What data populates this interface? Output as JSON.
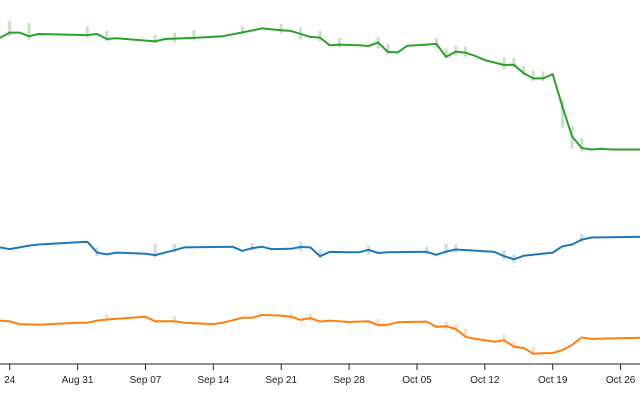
{
  "chart_data": {
    "type": "line",
    "title": "",
    "xlabel": "",
    "ylabel": "",
    "x_axis": {
      "type": "date",
      "domain": [
        "2020-08-23",
        "2020-10-28"
      ],
      "ticks": [
        {
          "date": "2020-08-24",
          "label": "24"
        },
        {
          "date": "2020-08-31",
          "label": "Aug 31"
        },
        {
          "date": "2020-09-07",
          "label": "Sep 07"
        },
        {
          "date": "2020-09-14",
          "label": "Sep 14"
        },
        {
          "date": "2020-09-21",
          "label": "Sep 21"
        },
        {
          "date": "2020-09-28",
          "label": "Sep 28"
        },
        {
          "date": "2020-10-05",
          "label": "Oct 05"
        },
        {
          "date": "2020-10-12",
          "label": "Oct 12"
        },
        {
          "date": "2020-10-19",
          "label": "Oct 19"
        },
        {
          "date": "2020-10-26",
          "label": "Oct 26"
        }
      ]
    },
    "y_axis": {
      "visible": false,
      "ylim": [
        0,
        100
      ]
    },
    "grid": false,
    "legend": "none",
    "series": [
      {
        "color": "#2ca02c",
        "band_color": "#c8e3c3",
        "points": [
          [
            "2020-08-23",
            91.5
          ],
          [
            "2020-08-24",
            93.0
          ],
          [
            "2020-08-25",
            93.0
          ],
          [
            "2020-08-26",
            92.0
          ],
          [
            "2020-08-27",
            92.6
          ],
          [
            "2020-09-01",
            92.3
          ],
          [
            "2020-09-02",
            92.6
          ],
          [
            "2020-09-03",
            91.2
          ],
          [
            "2020-09-04",
            91.4
          ],
          [
            "2020-09-05",
            91.2
          ],
          [
            "2020-09-08",
            90.5
          ],
          [
            "2020-09-09",
            91.2
          ],
          [
            "2020-09-12",
            91.5
          ],
          [
            "2020-09-15",
            92.0
          ],
          [
            "2020-09-18",
            93.6
          ],
          [
            "2020-09-19",
            94.2
          ],
          [
            "2020-09-21",
            93.7
          ],
          [
            "2020-09-22",
            93.5
          ],
          [
            "2020-09-24",
            91.8
          ],
          [
            "2020-09-25",
            91.6
          ],
          [
            "2020-09-26",
            89.4
          ],
          [
            "2020-09-27",
            89.6
          ],
          [
            "2020-09-29",
            89.4
          ],
          [
            "2020-09-30",
            89.2
          ],
          [
            "2020-10-01",
            90.2
          ],
          [
            "2020-10-02",
            87.5
          ],
          [
            "2020-10-03",
            87.4
          ],
          [
            "2020-10-04",
            89.3
          ],
          [
            "2020-10-06",
            89.6
          ],
          [
            "2020-10-07",
            89.8
          ],
          [
            "2020-10-08",
            86.1
          ],
          [
            "2020-10-09",
            87.6
          ],
          [
            "2020-10-10",
            87.3
          ],
          [
            "2020-10-11",
            86.4
          ],
          [
            "2020-10-12",
            85.2
          ],
          [
            "2020-10-14",
            83.8
          ],
          [
            "2020-10-15",
            83.9
          ],
          [
            "2020-10-16",
            81.5
          ],
          [
            "2020-10-17",
            80.0
          ],
          [
            "2020-10-18",
            80.0
          ],
          [
            "2020-10-19",
            81.2
          ],
          [
            "2020-10-20",
            72.0
          ],
          [
            "2020-10-21",
            63.5
          ],
          [
            "2020-10-22",
            60.2
          ],
          [
            "2020-10-23",
            59.8
          ],
          [
            "2020-10-24",
            60.0
          ],
          [
            "2020-10-25",
            59.8
          ],
          [
            "2020-10-28",
            59.8
          ]
        ]
      },
      {
        "color": "#1f77b4",
        "band_color": "#c6dbee",
        "points": [
          [
            "2020-08-23",
            32.0
          ],
          [
            "2020-08-24",
            31.5
          ],
          [
            "2020-08-26",
            32.5
          ],
          [
            "2020-08-27",
            32.8
          ],
          [
            "2020-09-01",
            33.6
          ],
          [
            "2020-09-02",
            30.5
          ],
          [
            "2020-09-03",
            30.0
          ],
          [
            "2020-09-04",
            30.5
          ],
          [
            "2020-09-07",
            30.2
          ],
          [
            "2020-09-08",
            29.8
          ],
          [
            "2020-09-10",
            31.2
          ],
          [
            "2020-09-11",
            32.0
          ],
          [
            "2020-09-14",
            32.1
          ],
          [
            "2020-09-16",
            32.2
          ],
          [
            "2020-09-17",
            31.0
          ],
          [
            "2020-09-18",
            31.8
          ],
          [
            "2020-09-19",
            32.2
          ],
          [
            "2020-09-20",
            31.5
          ],
          [
            "2020-09-22",
            31.6
          ],
          [
            "2020-09-23",
            32.1
          ],
          [
            "2020-09-24",
            32.0
          ],
          [
            "2020-09-25",
            29.5
          ],
          [
            "2020-09-26",
            30.7
          ],
          [
            "2020-09-28",
            30.6
          ],
          [
            "2020-09-29",
            30.6
          ],
          [
            "2020-09-30",
            31.3
          ],
          [
            "2020-10-01",
            30.4
          ],
          [
            "2020-10-02",
            30.6
          ],
          [
            "2020-10-05",
            30.7
          ],
          [
            "2020-10-06",
            30.7
          ],
          [
            "2020-10-07",
            29.9
          ],
          [
            "2020-10-08",
            30.8
          ],
          [
            "2020-10-09",
            31.4
          ],
          [
            "2020-10-13",
            30.7
          ],
          [
            "2020-10-14",
            29.5
          ],
          [
            "2020-10-15",
            28.6
          ],
          [
            "2020-10-16",
            29.6
          ],
          [
            "2020-10-19",
            30.5
          ],
          [
            "2020-10-20",
            32.3
          ],
          [
            "2020-10-21",
            32.8
          ],
          [
            "2020-10-22",
            34.2
          ],
          [
            "2020-10-23",
            34.8
          ],
          [
            "2020-10-28",
            35.0
          ]
        ]
      },
      {
        "color": "#ff7f0e",
        "band_color": "#f7ddc2",
        "points": [
          [
            "2020-08-23",
            11.2
          ],
          [
            "2020-08-24",
            11.0
          ],
          [
            "2020-08-25",
            10.2
          ],
          [
            "2020-08-27",
            10.0
          ],
          [
            "2020-08-31",
            10.6
          ],
          [
            "2020-09-01",
            10.6
          ],
          [
            "2020-09-02",
            11.2
          ],
          [
            "2020-09-03",
            11.5
          ],
          [
            "2020-09-07",
            12.3
          ],
          [
            "2020-09-08",
            11.0
          ],
          [
            "2020-09-10",
            11.0
          ],
          [
            "2020-09-11",
            10.6
          ],
          [
            "2020-09-14",
            10.2
          ],
          [
            "2020-09-15",
            10.6
          ],
          [
            "2020-09-17",
            12.0
          ],
          [
            "2020-09-18",
            12.0
          ],
          [
            "2020-09-19",
            12.8
          ],
          [
            "2020-09-21",
            12.6
          ],
          [
            "2020-09-22",
            12.3
          ],
          [
            "2020-09-23",
            11.4
          ],
          [
            "2020-09-24",
            11.9
          ],
          [
            "2020-09-25",
            10.9
          ],
          [
            "2020-09-26",
            11.2
          ],
          [
            "2020-09-28",
            10.8
          ],
          [
            "2020-09-30",
            11.0
          ],
          [
            "2020-10-01",
            9.9
          ],
          [
            "2020-10-02",
            10.0
          ],
          [
            "2020-10-03",
            10.7
          ],
          [
            "2020-10-04",
            10.8
          ],
          [
            "2020-10-06",
            10.9
          ],
          [
            "2020-10-07",
            9.4
          ],
          [
            "2020-10-08",
            9.6
          ],
          [
            "2020-10-09",
            8.8
          ],
          [
            "2020-10-10",
            6.6
          ],
          [
            "2020-10-11",
            6.0
          ],
          [
            "2020-10-12",
            5.6
          ],
          [
            "2020-10-13",
            5.2
          ],
          [
            "2020-10-14",
            5.6
          ],
          [
            "2020-10-15",
            3.8
          ],
          [
            "2020-10-16",
            3.4
          ],
          [
            "2020-10-17",
            1.8
          ],
          [
            "2020-10-18",
            1.9
          ],
          [
            "2020-10-19",
            2.0
          ],
          [
            "2020-10-20",
            2.8
          ],
          [
            "2020-10-21",
            4.3
          ],
          [
            "2020-10-22",
            6.4
          ],
          [
            "2020-10-23",
            6.0
          ],
          [
            "2020-10-28",
            6.3
          ]
        ]
      }
    ],
    "bands": [
      {
        "color": "#c8e3c3",
        "bars": [
          [
            "2020-08-24",
            92.0,
            96.5
          ],
          [
            "2020-08-26",
            91.0,
            95.8
          ],
          [
            "2020-09-01",
            91.5,
            94.8
          ],
          [
            "2020-09-03",
            90.5,
            93.5
          ],
          [
            "2020-09-08",
            90.0,
            92.5
          ],
          [
            "2020-09-10",
            90.2,
            93.0
          ],
          [
            "2020-09-12",
            90.8,
            93.8
          ],
          [
            "2020-09-17",
            92.5,
            94.8
          ],
          [
            "2020-09-21",
            92.8,
            95.5
          ],
          [
            "2020-09-23",
            91.0,
            94.5
          ],
          [
            "2020-09-25",
            90.5,
            93.5
          ],
          [
            "2020-09-27",
            88.8,
            91.5
          ],
          [
            "2020-10-01",
            88.5,
            91.8
          ],
          [
            "2020-10-02",
            86.8,
            89.8
          ],
          [
            "2020-10-07",
            88.5,
            91.5
          ],
          [
            "2020-10-08",
            85.8,
            88.5
          ],
          [
            "2020-10-09",
            86.5,
            89.3
          ],
          [
            "2020-10-10",
            86.2,
            89.0
          ],
          [
            "2020-10-14",
            82.5,
            86.0
          ],
          [
            "2020-10-15",
            83.0,
            85.8
          ],
          [
            "2020-10-16",
            80.8,
            83.6
          ],
          [
            "2020-10-17",
            79.3,
            82.2
          ],
          [
            "2020-10-18",
            79.3,
            82.0
          ],
          [
            "2020-10-20",
            66.0,
            74.0
          ],
          [
            "2020-10-21",
            60.0,
            66.5
          ],
          [
            "2020-10-22",
            59.2,
            63.0
          ]
        ]
      },
      {
        "color": "#c6dbee",
        "bars": [
          [
            "2020-09-02",
            29.5,
            32.0
          ],
          [
            "2020-09-08",
            29.2,
            33.0
          ],
          [
            "2020-09-10",
            30.5,
            33.0
          ],
          [
            "2020-09-18",
            31.0,
            33.2
          ],
          [
            "2020-09-23",
            31.0,
            33.5
          ],
          [
            "2020-09-25",
            29.0,
            31.5
          ],
          [
            "2020-09-30",
            30.0,
            32.5
          ],
          [
            "2020-10-06",
            30.0,
            32.2
          ],
          [
            "2020-10-08",
            30.0,
            33.0
          ],
          [
            "2020-10-09",
            30.5,
            32.8
          ],
          [
            "2020-10-14",
            28.5,
            31.2
          ],
          [
            "2020-10-15",
            27.5,
            30.0
          ],
          [
            "2020-10-22",
            33.5,
            35.8
          ]
        ]
      },
      {
        "color": "#f7ddc2",
        "bars": [
          [
            "2020-09-03",
            10.8,
            13.0
          ],
          [
            "2020-09-10",
            10.3,
            12.5
          ],
          [
            "2020-09-22",
            11.5,
            13.3
          ],
          [
            "2020-09-24",
            11.0,
            13.2
          ],
          [
            "2020-10-01",
            9.5,
            11.6
          ],
          [
            "2020-10-08",
            8.8,
            11.0
          ],
          [
            "2020-10-09",
            8.5,
            10.2
          ],
          [
            "2020-10-10",
            6.2,
            8.8
          ],
          [
            "2020-10-14",
            4.8,
            7.2
          ],
          [
            "2020-10-15",
            3.2,
            5.2
          ],
          [
            "2020-10-17",
            1.4,
            3.8
          ]
        ]
      }
    ]
  }
}
